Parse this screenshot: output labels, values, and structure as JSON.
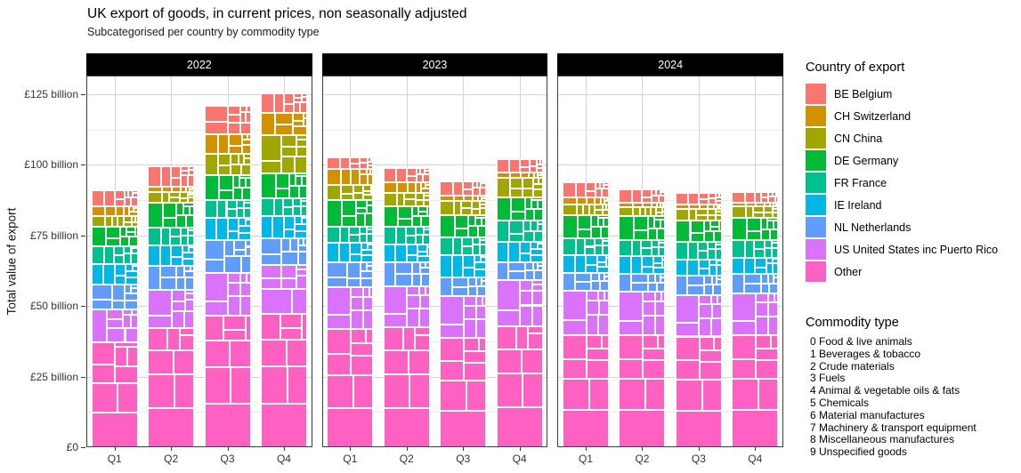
{
  "title": "UK export of goods, in current prices, non seasonally adjusted",
  "subtitle": "Subcategorised per country by commodity type",
  "axes": {
    "y": {
      "title": "Total value of export",
      "ticks": [
        {
          "value": 0,
          "label": "£0"
        },
        {
          "value": 25,
          "label": "£25 billion"
        },
        {
          "value": 50,
          "label": "£50 billion"
        },
        {
          "value": 75,
          "label": "£75 billion"
        },
        {
          "value": 100,
          "label": "£100 billion"
        },
        {
          "value": 125,
          "label": "£125 billion"
        }
      ]
    },
    "x": {
      "labels": [
        "Q1",
        "Q2",
        "Q3",
        "Q4"
      ]
    }
  },
  "legend": {
    "title": "Country of export",
    "entries": [
      {
        "code": "BE",
        "label": "BE Belgium",
        "color": "#F8766D"
      },
      {
        "code": "CH",
        "label": "CH Switzerland",
        "color": "#D29200"
      },
      {
        "code": "CN",
        "label": "CN China",
        "color": "#9FA700"
      },
      {
        "code": "DE",
        "label": "DE Germany",
        "color": "#00BA38"
      },
      {
        "code": "FR",
        "label": "FR France",
        "color": "#00C08D"
      },
      {
        "code": "IE",
        "label": "IE Ireland",
        "color": "#00B8E5"
      },
      {
        "code": "NL",
        "label": "NL Netherlands",
        "color": "#619CFF"
      },
      {
        "code": "US",
        "label": "US United States inc Puerto Rico",
        "color": "#DB72FB"
      },
      {
        "code": "OTHER",
        "label": "Other",
        "color": "#FF61C3"
      }
    ]
  },
  "commodity": {
    "title": "Commodity type",
    "items": [
      "0 Food & live animals",
      "1 Beverages & tobacco",
      "2 Crude materials",
      "3 Fuels",
      "4 Animal & vegetable oils & fats",
      "5 Chemicals",
      "6 Material manufactures",
      "7 Machinery & transport equipment",
      "8 Miscellaneous manufactures",
      "9 Unspecified goods"
    ]
  },
  "chart_data": {
    "type": "bar",
    "variant": "stacked-mosaic",
    "unit": "£ billion",
    "categories": [
      "Q1",
      "Q2",
      "Q3",
      "Q4"
    ],
    "ylim": [
      0,
      131
    ],
    "y_major_gridlines": [
      25,
      50,
      75,
      100,
      125
    ],
    "y_minor_gridlines": [
      12.5,
      37.5,
      62.5,
      87.5,
      112.5
    ],
    "grid": "on",
    "facet_strip_background": "#000000",
    "facet_strip_text_color": "#ffffff",
    "legend_position": "right",
    "stack_order_bottom_to_top": [
      "OTHER",
      "US",
      "NL",
      "IE",
      "FR",
      "DE",
      "CN",
      "CH",
      "BE"
    ],
    "facets": [
      {
        "label": "2022",
        "series": [
          {
            "code": "BE",
            "name": "BE Belgium",
            "values": [
              5.5,
              7.1,
              10.0,
              6.8
            ]
          },
          {
            "code": "CH",
            "name": "CH Switzerland",
            "values": [
              3.6,
              1.8,
              7.0,
              7.9
            ]
          },
          {
            "code": "CN",
            "name": "CN China",
            "values": [
              3.7,
              4.0,
              7.4,
              13.6
            ]
          },
          {
            "code": "DE",
            "name": "DE Germany",
            "values": [
              6.8,
              8.7,
              8.9,
              8.9
            ]
          },
          {
            "code": "FR",
            "name": "FR France",
            "values": [
              6.3,
              6.3,
              6.3,
              6.3
            ]
          },
          {
            "code": "IE",
            "name": "IE Ireland",
            "values": [
              7.4,
              7.3,
              7.9,
              7.9
            ]
          },
          {
            "code": "NL",
            "name": "NL Netherlands",
            "values": [
              8.9,
              8.4,
              11.5,
              9.4
            ]
          },
          {
            "code": "US",
            "name": "US United States inc Puerto Rico",
            "values": [
              11.5,
              13.6,
              15.2,
              17.4
            ]
          },
          {
            "code": "OTHER",
            "name": "Other",
            "values": [
              37.2,
              42.2,
              46.6,
              47.1
            ]
          }
        ]
      },
      {
        "label": "2023",
        "series": [
          {
            "code": "BE",
            "name": "BE Belgium",
            "values": [
              4.2,
              5.0,
              5.2,
              4.6
            ]
          },
          {
            "code": "CH",
            "name": "CH Switzerland",
            "values": [
              5.7,
              3.7,
              1.9,
              1.9
            ]
          },
          {
            "code": "CN",
            "name": "CN China",
            "values": [
              5.3,
              4.7,
              4.9,
              6.8
            ]
          },
          {
            "code": "DE",
            "name": "DE Germany",
            "values": [
              9.4,
              7.3,
              7.9,
              8.4
            ]
          },
          {
            "code": "FR",
            "name": "FR France",
            "values": [
              5.8,
              6.3,
              6.3,
              7.4
            ]
          },
          {
            "code": "IE",
            "name": "IE Ireland",
            "values": [
              6.8,
              6.3,
              7.9,
              7.3
            ]
          },
          {
            "code": "NL",
            "name": "NL Netherlands",
            "values": [
              8.9,
              8.4,
              6.8,
              6.3
            ]
          },
          {
            "code": "US",
            "name": "US United States inc Puerto Rico",
            "values": [
              14.7,
              14.7,
              14.7,
              16.3
            ]
          },
          {
            "code": "OTHER",
            "name": "Other",
            "values": [
              41.9,
              42.4,
              38.7,
              42.9
            ]
          }
        ]
      },
      {
        "label": "2024",
        "series": [
          {
            "code": "BE",
            "name": "BE Belgium",
            "values": [
              5.2,
              4.9,
              4.1,
              3.9
            ]
          },
          {
            "code": "CH",
            "name": "CH Switzerland",
            "values": [
              2.6,
              1.6,
              1.6,
              1.3
            ]
          },
          {
            "code": "CN",
            "name": "CN China",
            "values": [
              3.7,
              3.1,
              4.2,
              4.0
            ]
          },
          {
            "code": "DE",
            "name": "DE Germany",
            "values": [
              8.4,
              8.5,
              7.4,
              7.9
            ]
          },
          {
            "code": "FR",
            "name": "FR France",
            "values": [
              5.8,
              5.7,
              6.3,
              6.2
            ]
          },
          {
            "code": "IE",
            "name": "IE Ireland",
            "values": [
              6.3,
              6.3,
              5.7,
              5.8
            ]
          },
          {
            "code": "NL",
            "name": "NL Netherlands",
            "values": [
              6.3,
              6.3,
              6.9,
              6.8
            ]
          },
          {
            "code": "US",
            "name": "US United States inc Puerto Rico",
            "values": [
              15.8,
              15.3,
              14.7,
              14.8
            ]
          },
          {
            "code": "OTHER",
            "name": "Other",
            "values": [
              39.7,
              39.7,
              39.2,
              39.7
            ]
          }
        ]
      }
    ],
    "commodity_mix_estimated_pct": {
      "BE": {
        "7": 28,
        "5": 22,
        "6": 12,
        "8": 9,
        "0": 8,
        "3": 8,
        "2": 4,
        "1": 4,
        "9": 3,
        "4": 2
      },
      "CH": {
        "9": 30,
        "7": 22,
        "5": 18,
        "8": 12,
        "6": 8,
        "0": 5,
        "1": 3,
        "2": 2
      },
      "CN": {
        "7": 30,
        "5": 15,
        "2": 12,
        "6": 12,
        "8": 10,
        "0": 8,
        "1": 6,
        "3": 4,
        "9": 3
      },
      "DE": {
        "7": 32,
        "5": 18,
        "6": 12,
        "8": 10,
        "3": 9,
        "0": 7,
        "2": 5,
        "1": 4,
        "9": 3
      },
      "FR": {
        "7": 28,
        "5": 20,
        "0": 11,
        "6": 11,
        "8": 9,
        "1": 8,
        "3": 7,
        "2": 4,
        "9": 2
      },
      "IE": {
        "5": 26,
        "7": 24,
        "0": 14,
        "6": 10,
        "8": 9,
        "3": 8,
        "1": 5,
        "2": 3,
        "9": 1
      },
      "NL": {
        "7": 26,
        "3": 18,
        "5": 18,
        "6": 10,
        "0": 10,
        "8": 8,
        "2": 5,
        "1": 3,
        "9": 2
      },
      "US": {
        "7": 34,
        "5": 17,
        "8": 12,
        "3": 10,
        "6": 9,
        "1": 7,
        "0": 6,
        "2": 3,
        "9": 2
      },
      "OTHER": {
        "7": 33,
        "5": 16,
        "6": 12,
        "8": 11,
        "3": 9,
        "0": 8,
        "1": 5,
        "2": 4,
        "9": 2
      }
    }
  }
}
